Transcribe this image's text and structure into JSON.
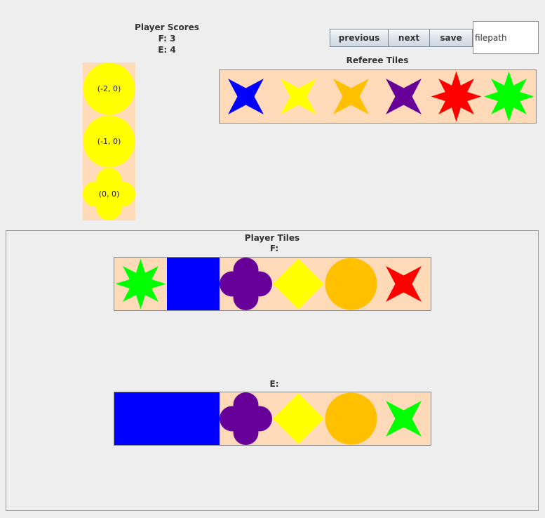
{
  "scores": {
    "title": "Player Scores",
    "lines": [
      "F: 3",
      "E: 4"
    ]
  },
  "toolbar": {
    "previous_label": "previous",
    "next_label": "next",
    "save_label": "save",
    "filepath_value": "filepath"
  },
  "referee": {
    "title": "Referee Tiles",
    "tiles": [
      {
        "shape": "star",
        "color": "#0000ff"
      },
      {
        "shape": "star",
        "color": "#ffff00"
      },
      {
        "shape": "star",
        "color": "#ffc000"
      },
      {
        "shape": "star",
        "color": "#660099"
      },
      {
        "shape": "8star",
        "color": "#ff0000"
      },
      {
        "shape": "8star",
        "color": "#00ff00"
      }
    ]
  },
  "board": {
    "tiles": [
      {
        "coord": "(-2, 0)",
        "shape": "circle",
        "color": "#ffff00"
      },
      {
        "coord": "(-1, 0)",
        "shape": "circle",
        "color": "#ffff00"
      },
      {
        "coord": "(0, 0)",
        "shape": "clover",
        "color": "#ffff00"
      }
    ]
  },
  "players": {
    "title": "Player Tiles",
    "hands": [
      {
        "label": "F:",
        "tiles": [
          {
            "shape": "8star",
            "color": "#00ff00"
          },
          {
            "shape": "square",
            "color": "#0000ff"
          },
          {
            "shape": "clover",
            "color": "#660099"
          },
          {
            "shape": "diamond",
            "color": "#ffff00"
          },
          {
            "shape": "circle",
            "color": "#ffc000"
          },
          {
            "shape": "star",
            "color": "#ff0000"
          }
        ]
      },
      {
        "label": "E:",
        "tiles": [
          {
            "shape": "square",
            "color": "#0000ff"
          },
          {
            "shape": "square",
            "color": "#0000ff"
          },
          {
            "shape": "clover",
            "color": "#660099"
          },
          {
            "shape": "diamond",
            "color": "#ffff00"
          },
          {
            "shape": "circle",
            "color": "#ffc000"
          },
          {
            "shape": "star",
            "color": "#00ff00"
          }
        ]
      }
    ]
  }
}
